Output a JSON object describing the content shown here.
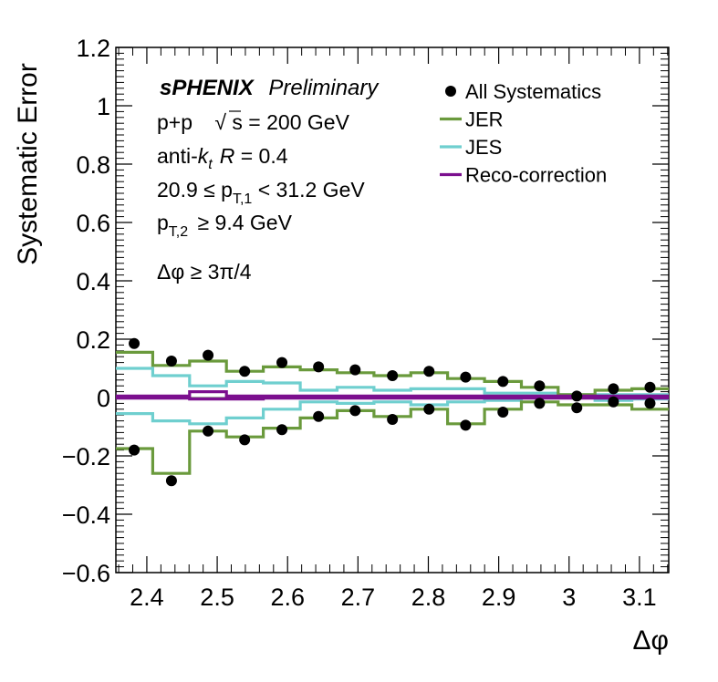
{
  "chart_data": {
    "type": "scatter",
    "xlabel": "Δφ",
    "ylabel": "Systematic Error",
    "xlim": [
      2.356,
      3.1416
    ],
    "ylim": [
      -0.6,
      1.2
    ],
    "x_ticks": [
      "2.4",
      "2.5",
      "2.6",
      "2.7",
      "2.8",
      "2.9",
      "3",
      "3.1"
    ],
    "y_ticks": [
      "−0.6",
      "−0.4",
      "−0.2",
      "0",
      "0.2",
      "0.4",
      "0.6",
      "0.8",
      "1",
      "1.2"
    ],
    "bin_edges": [
      2.356,
      2.4084,
      2.4607,
      2.5131,
      2.5655,
      2.618,
      2.6704,
      2.7227,
      2.7751,
      2.8274,
      2.8798,
      2.9322,
      2.9845,
      3.0369,
      3.0892,
      3.1416
    ],
    "bin_centers": [
      2.382,
      2.435,
      2.487,
      2.539,
      2.592,
      2.644,
      2.696,
      2.749,
      2.801,
      2.853,
      2.906,
      2.958,
      3.011,
      3.063,
      3.115
    ],
    "series": [
      {
        "name": "All Systematics",
        "style": "markers",
        "color": "#000000",
        "upper": [
          0.185,
          0.125,
          0.145,
          0.09,
          0.12,
          0.105,
          0.095,
          0.075,
          0.09,
          0.07,
          0.055,
          0.04,
          0.005,
          0.03,
          0.035
        ],
        "lower": [
          -0.18,
          -0.285,
          -0.115,
          -0.145,
          -0.11,
          -0.065,
          -0.045,
          -0.075,
          -0.04,
          -0.095,
          -0.05,
          -0.02,
          -0.035,
          -0.015,
          -0.02
        ]
      },
      {
        "name": "JER",
        "style": "step",
        "color": "#6a9a3c",
        "upper": [
          0.155,
          0.11,
          0.125,
          0.09,
          0.105,
          0.095,
          0.085,
          0.075,
          0.085,
          0.065,
          0.055,
          0.035,
          0.01,
          0.025,
          0.03
        ],
        "lower": [
          -0.175,
          -0.26,
          -0.115,
          -0.135,
          -0.105,
          -0.07,
          -0.045,
          -0.065,
          -0.04,
          -0.09,
          -0.04,
          -0.015,
          -0.025,
          -0.025,
          -0.04
        ]
      },
      {
        "name": "JES",
        "style": "step",
        "color": "#6fcfcf",
        "upper": [
          0.1,
          0.075,
          0.04,
          0.055,
          0.05,
          0.025,
          0.035,
          0.025,
          0.03,
          0.03,
          0.015,
          0.015,
          0.01,
          0.01,
          0.01
        ],
        "lower": [
          -0.055,
          -0.08,
          -0.09,
          -0.07,
          -0.04,
          -0.015,
          -0.02,
          -0.015,
          -0.025,
          -0.015,
          -0.01,
          0.0,
          0.0,
          -0.01,
          -0.005
        ]
      },
      {
        "name": "Reco-correction",
        "style": "step",
        "color": "#7b0f8e",
        "upper": [
          0.005,
          0.005,
          0.02,
          0.005,
          0.005,
          0.005,
          0.005,
          0.005,
          0.005,
          0.005,
          0.005,
          0.005,
          0.005,
          0.005,
          0.005
        ],
        "lower": [
          -0.002,
          -0.002,
          -0.005,
          -0.005,
          -0.002,
          -0.002,
          -0.002,
          -0.002,
          -0.002,
          -0.002,
          -0.002,
          -0.002,
          -0.002,
          -0.002,
          -0.002
        ]
      }
    ],
    "legend_position": "top-right",
    "annotations": {
      "experiment": "sPHENIX",
      "status": "Preliminary",
      "system_prefix": "p+p",
      "sqrt_symbol": "√",
      "sqrt_s": "s = 200 GeV",
      "algo_prefix": "anti-",
      "algo_k": "k",
      "algo_sub": "t",
      "radius_R": "R",
      "radius_val": " = 0.4",
      "pt1_lo": "20.9 ≤ p",
      "pt1_sub": "T,1",
      "pt1_hi": " < 31.2 GeV",
      "pt2_p": "p",
      "pt2_sub": "T,2",
      "pt2_hi": " ≥ 9.4 GeV",
      "dphi_cut": "Δφ ≥ 3π/4"
    }
  }
}
